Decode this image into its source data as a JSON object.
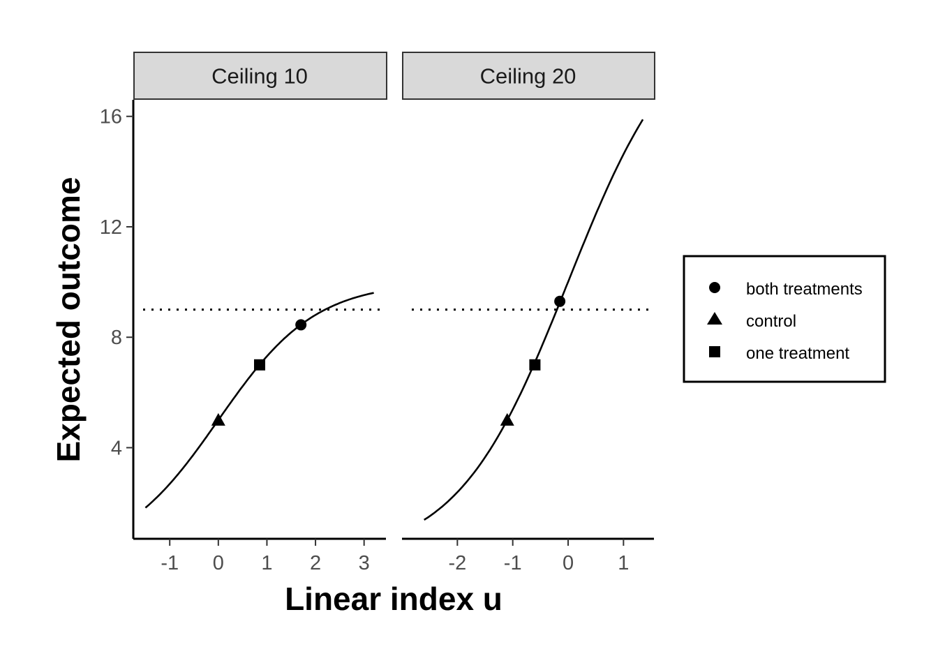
{
  "chart_data": {
    "type": "line",
    "xlabel": "Linear index u",
    "ylabel": "Expected outcome",
    "grid": false,
    "legend_position": "right",
    "ylim": [
      0.7,
      16.6
    ],
    "yticks": [
      4,
      8,
      12,
      16
    ],
    "reference_line": {
      "y": 9,
      "style": "dotted"
    },
    "legend": [
      {
        "label": "both treatments",
        "shape": "circle"
      },
      {
        "label": "control",
        "shape": "triangle"
      },
      {
        "label": "one treatment",
        "shape": "square"
      }
    ],
    "panels": [
      {
        "title": "Ceiling 10",
        "ceiling": 10,
        "xlim": [
          -1.75,
          3.45
        ],
        "xticks": [
          -1,
          0,
          1,
          2,
          3
        ],
        "curve_range": [
          -1.5,
          3.2
        ],
        "points": [
          {
            "group": "control",
            "x": 0.0,
            "y": 5.0
          },
          {
            "group": "one treatment",
            "x": 0.85,
            "y": 7.0
          },
          {
            "group": "both treatments",
            "x": 1.7,
            "y": 8.45
          }
        ]
      },
      {
        "title": "Ceiling 20",
        "ceiling": 20,
        "xlim": [
          -3.0,
          1.55
        ],
        "xticks": [
          -2,
          -1,
          0,
          1
        ],
        "curve_range": [
          -2.6,
          1.35
        ],
        "points": [
          {
            "group": "control",
            "x": -1.1,
            "y": 5.0
          },
          {
            "group": "one treatment",
            "x": -0.6,
            "y": 7.0
          },
          {
            "group": "both treatments",
            "x": -0.15,
            "y": 9.3
          }
        ]
      }
    ]
  }
}
